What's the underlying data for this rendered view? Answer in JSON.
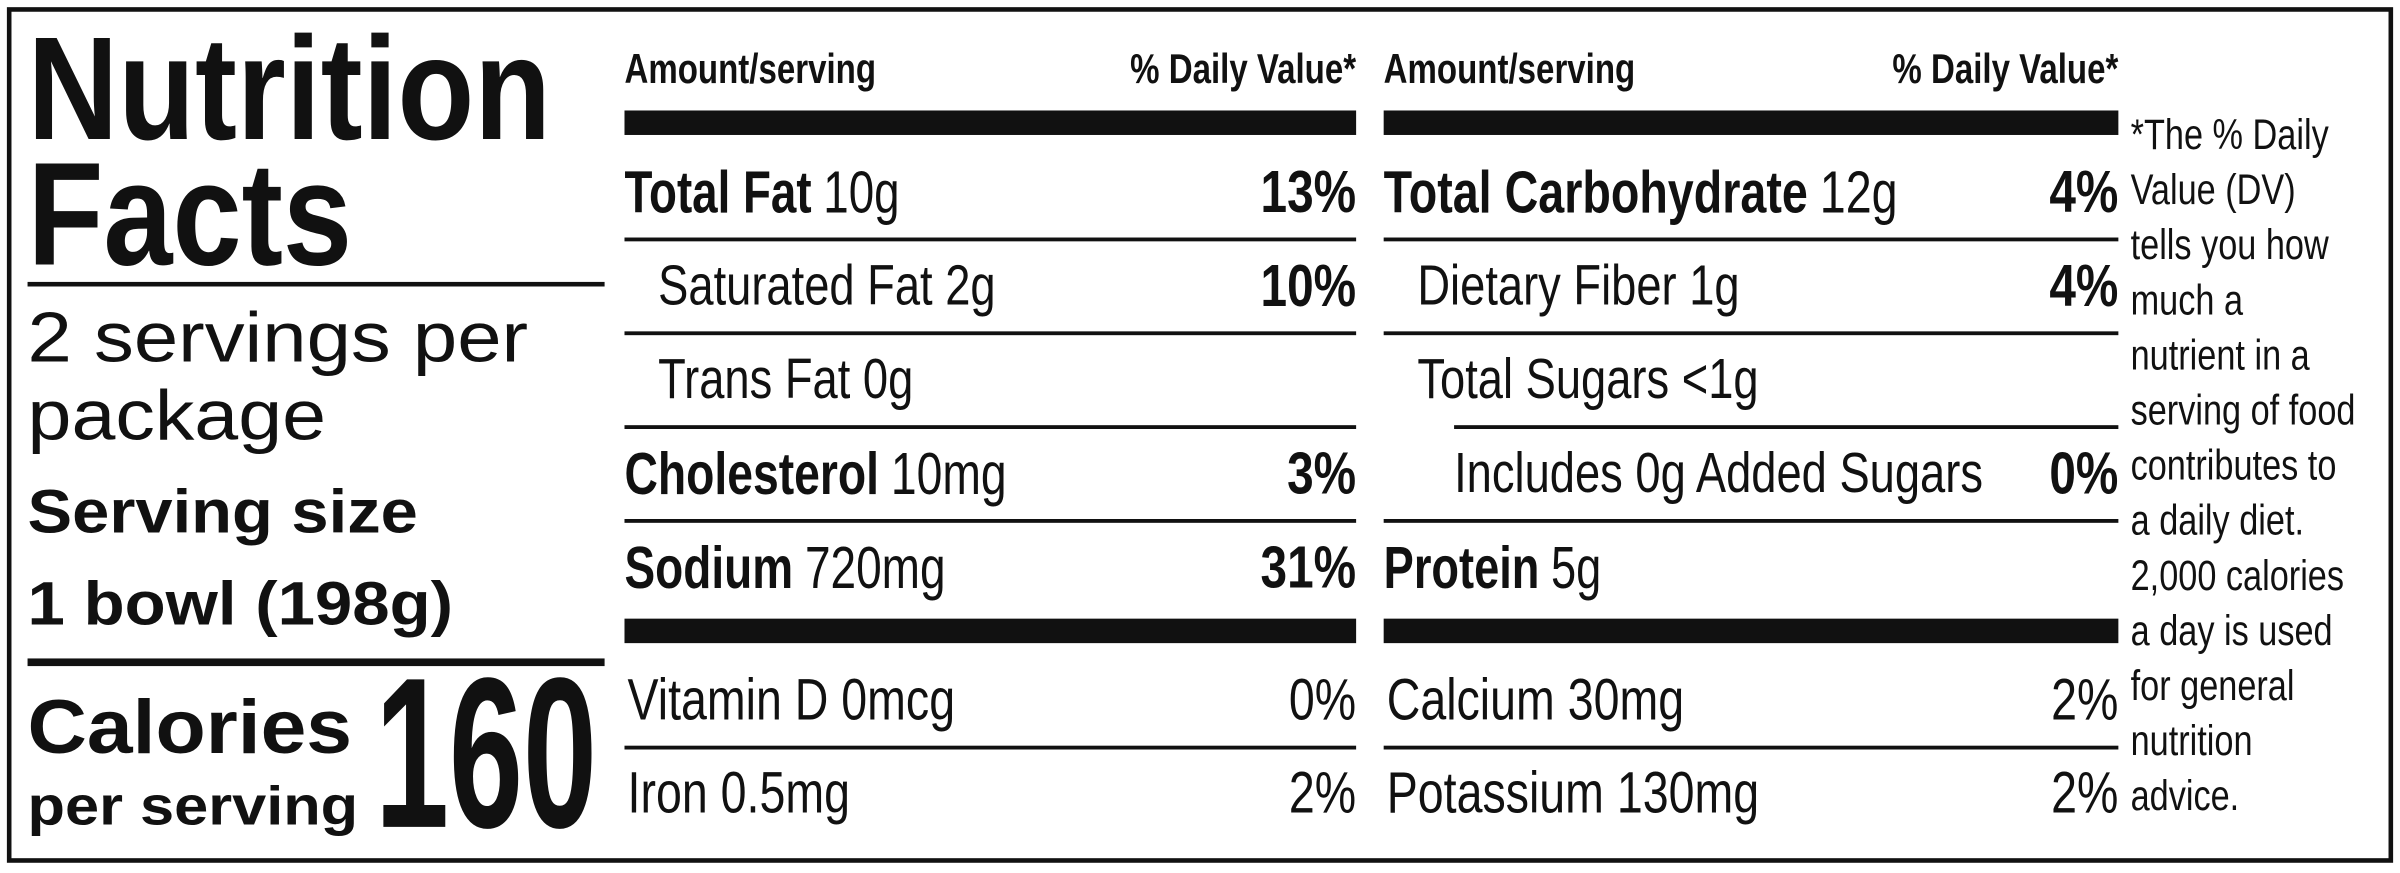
{
  "title": [
    "Nutrition",
    "Facts"
  ],
  "servings": [
    "2 servings per",
    "package"
  ],
  "serving_size": {
    "label": "Serving size",
    "value": "1 bowl (198g)"
  },
  "calories": {
    "label": [
      "Calories",
      "per serving"
    ],
    "value": 160
  },
  "columns": [
    {
      "header": [
        "Amount/serving",
        "% Daily Value*"
      ],
      "rows": [
        {
          "name": "Total Fat",
          "amount": "10g",
          "dv": "13%",
          "level": 0
        },
        {
          "name": "Saturated Fat 2g",
          "amount": null,
          "dv": "10%",
          "level": 1
        },
        {
          "name": "Trans Fat 0g",
          "amount": null,
          "dv": null,
          "level": 1
        },
        {
          "name": "Cholesterol",
          "amount": "10mg",
          "dv": "3%",
          "level": 0
        },
        {
          "name": "Sodium",
          "amount": "720mg",
          "dv": "31%",
          "level": 0
        }
      ],
      "minerals": [
        {
          "name": "Vitamin D 0mcg",
          "dv": "0%"
        },
        {
          "name": "Iron 0.5mg",
          "dv": "2%"
        }
      ]
    },
    {
      "header": [
        "Amount/serving",
        "% Daily Value*"
      ],
      "rows": [
        {
          "name": "Total Carbohydrate",
          "amount": "12g",
          "dv": "4%",
          "level": 0
        },
        {
          "name": "Dietary Fiber 1g",
          "amount": null,
          "dv": "4%",
          "level": 1
        },
        {
          "name": "Total Sugars <1g",
          "amount": null,
          "dv": null,
          "level": 1
        },
        {
          "name": "Includes 0g Added Sugars",
          "amount": null,
          "dv": "0%",
          "level": 2
        },
        {
          "name": "Protein",
          "amount": "5g",
          "dv": null,
          "level": 0
        }
      ],
      "minerals": [
        {
          "name": "Calcium 30mg",
          "dv": "2%"
        },
        {
          "name": "Potassium 130mg",
          "dv": "2%"
        }
      ]
    }
  ],
  "footnote": [
    "*The % Daily",
    "Value (DV)",
    "tells you how",
    "much a",
    "nutrient in a",
    "serving of food",
    "contributes to",
    "a daily diet.",
    "2,000 calories",
    "a day is used",
    "for general",
    "nutrition",
    "advice."
  ]
}
